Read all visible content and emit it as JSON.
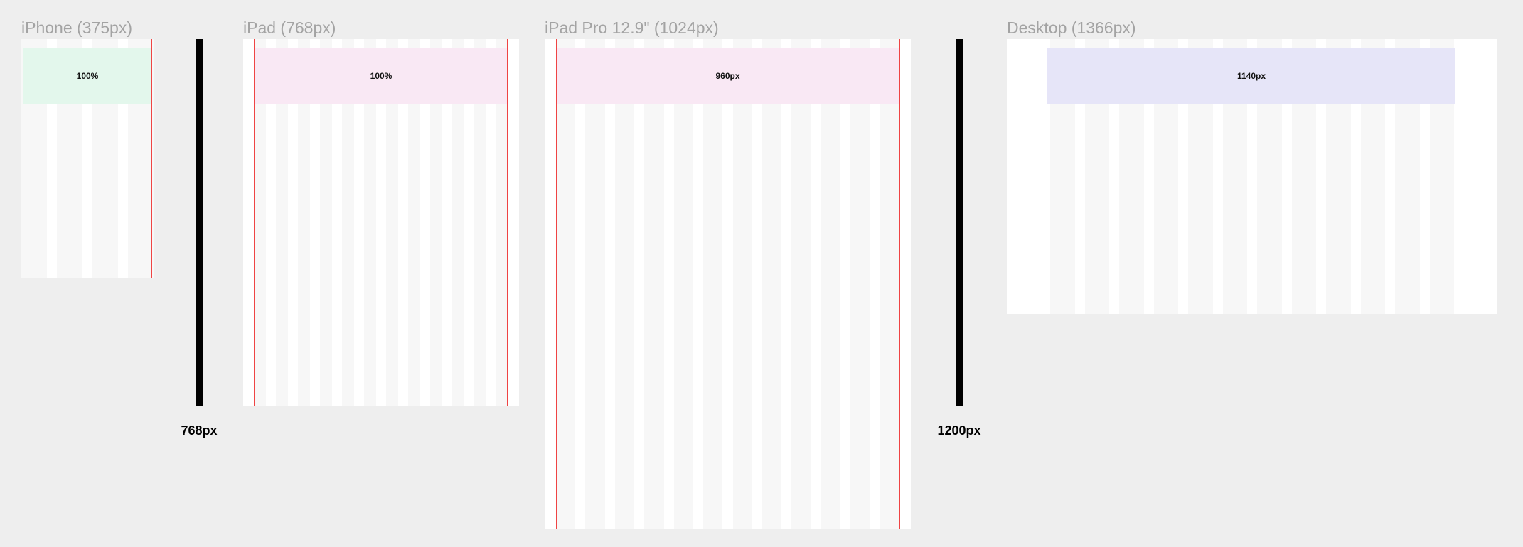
{
  "frames": [
    {
      "title": "iPhone (375px)",
      "container_label": "100%",
      "columns": 4,
      "band_color": "#e3f7ec",
      "has_guides": true
    },
    {
      "title": "iPad (768px)",
      "container_label": "100%",
      "columns": 12,
      "band_color": "#f9e8f4",
      "has_guides": true
    },
    {
      "title": "iPad Pro 12.9\" (1024px)",
      "container_label": "960px",
      "columns": 12,
      "band_color": "#f9e8f4",
      "has_guides": true
    },
    {
      "title": "Desktop (1366px)",
      "container_label": "1140px",
      "columns": 12,
      "band_color": "#e6e5f8",
      "has_guides": false
    }
  ],
  "breakpoints": [
    {
      "label": "768px"
    },
    {
      "label": "1200px"
    }
  ],
  "colors": {
    "background": "#eeeeee",
    "frame": "#ffffff",
    "column": "#f7f7f7",
    "guide_line": "#ef4444",
    "breakpoint_bar": "#000000",
    "title_text": "#a3a3a3"
  }
}
